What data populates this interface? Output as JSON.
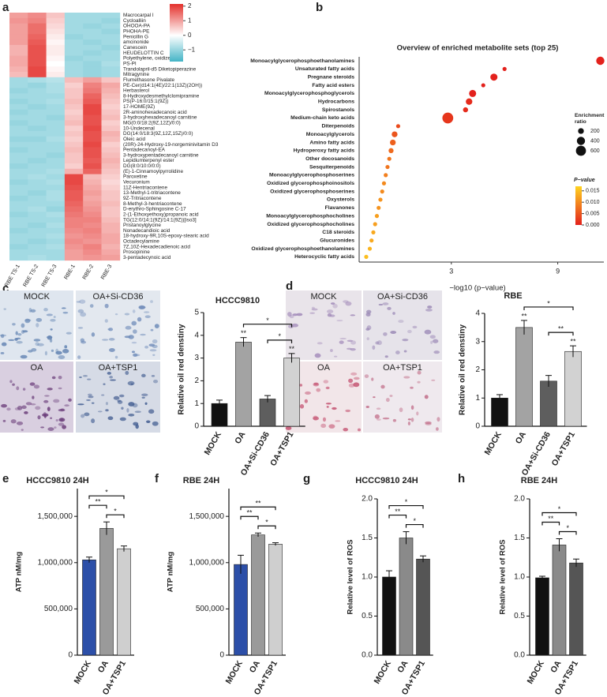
{
  "panel_labels": [
    "a",
    "b",
    "c",
    "d",
    "e",
    "f",
    "g",
    "h"
  ],
  "micrograph_labels": [
    [
      "MOCK",
      "OA+Si-CD36",
      "OA",
      "OA+TSP1"
    ],
    [
      "MOCK",
      "OA+Si-CD36",
      "OA",
      "OA+TSP1"
    ]
  ],
  "chart_data": [
    {
      "type": "heatmap",
      "columns": [
        "RBE TS-1",
        "RBE TS-2",
        "RBE TS-3",
        "RBE-1",
        "RBE-2",
        "RBE-3"
      ],
      "rows": [
        "Macrocarpal I",
        "Cycloalliin",
        "OHOOA-PA",
        "PHOHA-PE",
        "Penicillin G",
        "amcinonide",
        "Canescein",
        "HEUDELOTTIN C",
        "Polyethylene, oxidized",
        "PS-PI",
        "Trandolapril-d5 Diketopiperazine",
        "Mitragynine",
        "Flumethasone Pivalate",
        "PE-Cer(d14:1(4E)/22:1(13Z)(2OH))",
        "Herbasterol",
        "8-Hydroxydesmethylclomipramine",
        "PS(P-16:0/15:1(9Z))",
        "17-HOME(9Z)",
        "2R-aminohexadecanoic acid",
        "3-hydroxyhexadecanoyl carnitine",
        "MG(0:0/18:2(9Z,12Z)/0:0)",
        "10-Undecenal",
        "DG(14:0/18:3(9Z,12Z,15Z)/0:0)",
        "Oleic acid",
        "(20R)-24-Hydroxy-19-norgeminivitamin D3",
        "Pentadecanoyl-EA",
        "3-hydroxypentadecanoyl carnitine",
        "Lepidiumterpenyl ester",
        "DG(8:0/10:0/0:0)",
        "(E)-1-Cinnamoylpyrrolidine",
        "Paroxetine",
        "Vecuronium",
        "11Z-Hentriacontene",
        "13-Methyl-1-tritriacontene",
        "9Z-Tritriacontene",
        "8-Methyl-3-hentriacontene",
        "D-erythro-Sphingosine C-17",
        "2-(1-Ethoxyethoxy)propanoic acid",
        "TG(12:0/14:1(9Z)/14:1(9Z))[iso3]",
        "Pristanoylglycine",
        "Nonadecandioic acid",
        "18-hydroxy-9R,10S-epoxy-stearic acid",
        "Octadecylamine",
        "7Z,10Z-Hexadecadienoic acid",
        "Prosopinine",
        "3-pentadecynoic acid"
      ],
      "values": [
        [
          1.0,
          1.2,
          0.6,
          -0.9,
          -0.9,
          -0.9
        ],
        [
          1.1,
          1.3,
          0.5,
          -0.9,
          -0.9,
          -1.0
        ],
        [
          1.0,
          1.5,
          0.4,
          -0.9,
          -1.0,
          -0.9
        ],
        [
          1.0,
          1.5,
          0.3,
          -0.9,
          -0.9,
          -1.0
        ],
        [
          1.0,
          1.6,
          0.2,
          -1.0,
          -0.9,
          -0.9
        ],
        [
          1.0,
          1.7,
          0.1,
          -0.9,
          -1.0,
          -0.9
        ],
        [
          0.8,
          1.8,
          0.2,
          -0.9,
          -0.9,
          -1.0
        ],
        [
          0.8,
          1.8,
          0.2,
          -0.9,
          -1.0,
          -0.9
        ],
        [
          0.9,
          1.8,
          0.1,
          -1.0,
          -0.9,
          -0.9
        ],
        [
          0.9,
          1.8,
          0.0,
          -0.9,
          -1.0,
          -0.8
        ],
        [
          0.8,
          1.9,
          0.1,
          -0.9,
          -1.0,
          -0.9
        ],
        [
          0.7,
          1.9,
          0.2,
          -0.9,
          -1.0,
          -0.9
        ],
        [
          -0.9,
          -0.8,
          -0.7,
          0.7,
          1.0,
          0.6
        ],
        [
          -0.9,
          -1.0,
          -0.8,
          0.5,
          1.3,
          0.9
        ],
        [
          -1.0,
          -0.9,
          -0.8,
          0.6,
          1.4,
          0.8
        ],
        [
          -0.9,
          -0.9,
          -0.9,
          0.6,
          1.6,
          0.7
        ],
        [
          -1.0,
          -0.9,
          -0.8,
          0.7,
          1.7,
          0.6
        ],
        [
          -0.9,
          -1.0,
          -0.9,
          0.6,
          1.9,
          0.5
        ],
        [
          -1.0,
          -0.9,
          -0.9,
          0.5,
          1.9,
          0.6
        ],
        [
          -0.9,
          -0.9,
          -1.0,
          0.6,
          1.8,
          0.7
        ],
        [
          -1.0,
          -0.9,
          -0.9,
          0.7,
          1.8,
          0.5
        ],
        [
          -0.9,
          -1.0,
          -0.9,
          0.5,
          1.9,
          0.6
        ],
        [
          -0.9,
          -0.9,
          -0.9,
          0.6,
          1.8,
          0.8
        ],
        [
          -1.0,
          -1.0,
          -0.8,
          0.5,
          1.8,
          0.7
        ],
        [
          -0.9,
          -0.9,
          -0.9,
          0.6,
          1.9,
          0.5
        ],
        [
          -1.0,
          -0.9,
          -0.9,
          0.7,
          1.8,
          0.6
        ],
        [
          -0.9,
          -0.9,
          -1.0,
          0.6,
          1.8,
          0.7
        ],
        [
          -0.9,
          -1.0,
          -0.9,
          0.6,
          1.7,
          0.8
        ],
        [
          -1.0,
          -0.9,
          -0.9,
          0.5,
          1.8,
          0.7
        ],
        [
          -0.9,
          -0.9,
          -0.8,
          0.8,
          1.6,
          0.6
        ],
        [
          -0.9,
          -0.8,
          -0.9,
          1.9,
          0.7,
          0.5
        ],
        [
          -1.0,
          -0.9,
          -0.8,
          1.9,
          0.8,
          0.4
        ],
        [
          -0.9,
          -0.9,
          -0.9,
          1.8,
          0.9,
          0.5
        ],
        [
          -0.9,
          -1.0,
          -0.8,
          1.7,
          1.0,
          0.6
        ],
        [
          -1.0,
          -0.9,
          -0.8,
          1.7,
          0.9,
          0.6
        ],
        [
          -0.9,
          -0.9,
          -0.9,
          1.6,
          1.0,
          0.7
        ],
        [
          -0.9,
          -0.8,
          -1.0,
          1.5,
          1.1,
          0.6
        ],
        [
          -1.0,
          -0.9,
          -0.8,
          1.4,
          1.2,
          0.6
        ],
        [
          -0.9,
          -0.9,
          -0.9,
          1.3,
          1.3,
          0.7
        ],
        [
          -0.9,
          -1.0,
          -0.8,
          1.3,
          1.2,
          0.8
        ],
        [
          -1.0,
          -0.9,
          -0.9,
          1.2,
          1.3,
          0.8
        ],
        [
          -0.9,
          -0.9,
          -0.8,
          1.1,
          1.2,
          0.9
        ],
        [
          -0.9,
          -1.0,
          -0.9,
          1.2,
          1.1,
          0.9
        ],
        [
          -1.0,
          -0.9,
          -0.8,
          1.1,
          1.3,
          0.8
        ],
        [
          -0.9,
          -0.9,
          -0.9,
          1.0,
          1.2,
          0.9
        ],
        [
          -0.9,
          -0.8,
          -0.9,
          1.0,
          1.1,
          1.0
        ]
      ],
      "highlight_rows": [
        23
      ],
      "highlight_color": "#e0413c",
      "colors": [
        "#44b4c6",
        "#ffffff",
        "#e4302b"
      ],
      "clim": [
        -1.8,
        2.15
      ],
      "cticks": [
        2,
        1,
        0,
        {
          "value": -1,
          "label": "−1"
        }
      ]
    },
    {
      "type": "scatter",
      "title": "Overview of enriched metabolite sets (top 25)",
      "categories": [
        "Monoacylglycerophosphoethanolamines",
        "Unsaturated fatty acids",
        "Pregnane steroids",
        "Fatty acid esters",
        "Monoacylglycerophosphoglycerols",
        "Hydrocarbons",
        "Spirostanols",
        "Medium-chain keto acids",
        "Diterpenoids",
        "Monoacylglycerols",
        "Amino fatty acids",
        "Hydroperoxy fatty acids",
        "Other docosanoids",
        "Sesquiterpenoids",
        "Monoacylglycerophosphoserines",
        "Oxidized glycerophosphoinositols",
        "Oxidized glycerophosphoserines",
        "Oxysterols",
        "Flavanones",
        "Monoacylglycerophosphocholines",
        "Oxidized glycerophosphocholines",
        "C18 steroids",
        "Glucuronides",
        "Oxidized glycerophosphoethanolamines",
        "Heterocyclic fatty acids"
      ],
      "x": [
        11.4,
        6.0,
        5.4,
        4.8,
        4.2,
        4.0,
        3.8,
        2.8,
        0.0,
        -0.2,
        -0.3,
        -0.4,
        -0.5,
        -0.6,
        -0.7,
        -0.8,
        -0.9,
        -1.0,
        -1.1,
        -1.2,
        -1.3,
        -1.4,
        -1.5,
        -1.6,
        -1.8
      ],
      "sizes": [
        400,
        100,
        300,
        100,
        300,
        250,
        150,
        700,
        100,
        200,
        200,
        150,
        100,
        100,
        100,
        100,
        100,
        100,
        100,
        100,
        100,
        100,
        100,
        100,
        100
      ],
      "p_values": [
        0.0,
        0.0,
        0.0,
        0.0,
        0.0,
        0.001,
        0.001,
        0.002,
        0.004,
        0.005,
        0.006,
        0.007,
        0.008,
        0.008,
        0.009,
        0.01,
        0.01,
        0.011,
        0.011,
        0.012,
        0.012,
        0.013,
        0.013,
        0.014,
        0.015
      ],
      "highlight_rows": [
        1
      ],
      "highlight_color": "#e0413c",
      "xlim": [
        -2.2,
        11.6
      ],
      "xticks": [
        3,
        9
      ],
      "xlabel": "−log10 (p−value)",
      "size_legend": {
        "title": [
          "Enrichment",
          "ratio"
        ],
        "values": [
          200,
          400,
          600
        ]
      },
      "color_legend": {
        "title": "P−value",
        "lim": [
          0,
          0.017
        ],
        "colors": [
          "#e3211c",
          "#ffd320"
        ],
        "ticks": [
          {
            "value": 0.015,
            "label": "0.015"
          },
          {
            "value": 0.01,
            "label": "0.010"
          },
          {
            "value": 0.005,
            "label": "0.005"
          },
          {
            "value": 0,
            "label": "0.000"
          }
        ]
      }
    },
    {
      "type": "bar",
      "title": "HCCC9810",
      "ylabel": "Relative oil red denstiny",
      "categories": [
        "MOCK",
        "OA",
        "OA+Si-CD36",
        "OA+TSP1"
      ],
      "values": [
        1.0,
        3.7,
        1.2,
        3.0
      ],
      "errors": [
        0.15,
        0.2,
        0.15,
        0.2
      ],
      "colors": [
        "#111111",
        "#a3a3a3",
        "#5e5e5e",
        "#d2d2d2"
      ],
      "bar_labels": [
        null,
        "**",
        null,
        "**"
      ],
      "brackets": [
        {
          "bars": [
            2,
            3
          ],
          "label": "*"
        },
        {
          "bars": [
            1,
            3
          ],
          "label": "*"
        }
      ],
      "ylim": [
        0,
        5
      ],
      "yticks": [
        0,
        1,
        2,
        3,
        4,
        5
      ]
    },
    {
      "type": "bar",
      "title": "RBE",
      "ylabel": "Relative oil red denstiny",
      "categories": [
        "MOCK",
        "OA",
        "OA+Si-CD36",
        "OA+TSP1"
      ],
      "values": [
        1.0,
        3.5,
        1.6,
        2.65
      ],
      "errors": [
        0.12,
        0.25,
        0.2,
        0.2
      ],
      "colors": [
        "#111111",
        "#a3a3a3",
        "#5e5e5e",
        "#d2d2d2"
      ],
      "bar_labels": [
        null,
        "**",
        null,
        "**"
      ],
      "brackets": [
        {
          "bars": [
            2,
            3
          ],
          "label": "**"
        },
        {
          "bars": [
            1,
            3
          ],
          "label": "*"
        }
      ],
      "ylim": [
        0,
        4
      ],
      "yticks": [
        0,
        1,
        2,
        3,
        4
      ]
    },
    {
      "type": "bar",
      "title": "HCCC9810 24H",
      "ylabel": "ATP nM/mg",
      "categories": [
        "MOCK",
        "OA",
        "OA+TSP1"
      ],
      "values": [
        1030000,
        1370000,
        1150000
      ],
      "errors": [
        30000,
        70000,
        30000
      ],
      "colors": [
        "#2c4fa8",
        "#9a9a9a",
        "#cfcfcf"
      ],
      "brackets": [
        {
          "bars": [
            1,
            2
          ],
          "label": "*"
        },
        {
          "bars": [
            0,
            1
          ],
          "label": "**"
        },
        {
          "bars": [
            0,
            2
          ],
          "label": "*"
        }
      ],
      "ylim": [
        0,
        1800000
      ],
      "yticks": [
        0,
        {
          "value": 500000,
          "label": "500,000"
        },
        {
          "value": 1000000,
          "label": "1,000,000"
        },
        {
          "value": 1500000,
          "label": "1,500,000"
        }
      ]
    },
    {
      "type": "bar",
      "title": "RBE 24H",
      "ylabel": "ATP nM/mg",
      "categories": [
        "MOCK",
        "OA",
        "OA+TSP1"
      ],
      "values": [
        980000,
        1300000,
        1200000
      ],
      "errors": [
        100000,
        20000,
        15000
      ],
      "colors": [
        "#2c4fa8",
        "#9a9a9a",
        "#cfcfcf"
      ],
      "brackets": [
        {
          "bars": [
            1,
            2
          ],
          "label": "*"
        },
        {
          "bars": [
            0,
            1
          ],
          "label": "**"
        },
        {
          "bars": [
            0,
            2
          ],
          "label": "**"
        }
      ],
      "ylim": [
        0,
        1800000
      ],
      "yticks": [
        0,
        {
          "value": 500000,
          "label": "500,000"
        },
        {
          "value": 1000000,
          "label": "1,000,000"
        },
        {
          "value": 1500000,
          "label": "1,500,000"
        }
      ]
    },
    {
      "type": "bar",
      "title": "HCCC9810 24H",
      "ylabel": "Relative level of ROS",
      "categories": [
        "MOCK",
        "OA",
        "OA+TSP1"
      ],
      "values": [
        1.0,
        1.5,
        1.23
      ],
      "errors": [
        0.08,
        0.08,
        0.04
      ],
      "colors": [
        "#111111",
        "#8a8a8a",
        "#555555"
      ],
      "brackets": [
        {
          "bars": [
            1,
            2
          ],
          "label": "*"
        },
        {
          "bars": [
            0,
            1
          ],
          "label": "**"
        },
        {
          "bars": [
            0,
            2
          ],
          "label": "*"
        }
      ],
      "ylim": [
        0,
        2
      ],
      "yticks": [
        {
          "value": 0,
          "label": "0.0"
        },
        0.5,
        {
          "value": 1,
          "label": "1.0"
        },
        1.5,
        {
          "value": 2,
          "label": "2.0"
        }
      ]
    },
    {
      "type": "bar",
      "title": "RBE 24H",
      "ylabel": "Relative level of ROS",
      "categories": [
        "MOCK",
        "OA",
        "OA+TSP1"
      ],
      "values": [
        0.99,
        1.41,
        1.18
      ],
      "errors": [
        0.02,
        0.08,
        0.05
      ],
      "colors": [
        "#111111",
        "#8a8a8a",
        "#555555"
      ],
      "brackets": [
        {
          "bars": [
            1,
            2
          ],
          "label": "*"
        },
        {
          "bars": [
            0,
            1
          ],
          "label": "**"
        },
        {
          "bars": [
            0,
            2
          ],
          "label": "*"
        }
      ],
      "ylim": [
        0,
        2
      ],
      "yticks": [
        {
          "value": 0,
          "label": "0.0"
        },
        0.5,
        {
          "value": 1,
          "label": "1.0"
        },
        1.5,
        {
          "value": 2,
          "label": "2.0"
        }
      ]
    }
  ]
}
